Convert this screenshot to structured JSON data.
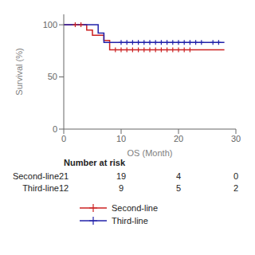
{
  "chart_data": {
    "type": "line",
    "xlabel": "OS (Month)",
    "ylabel": "Survival (%)",
    "xlim": [
      0,
      30
    ],
    "ylim": [
      0,
      110
    ],
    "xticks": [
      0,
      10,
      20,
      30
    ],
    "yticks": [
      0,
      50,
      100
    ],
    "legend": "bottom",
    "series": [
      {
        "name": "Second-line",
        "color": "#CC2222",
        "line_style": "step",
        "marker": "+",
        "x": [
          0,
          4,
          4,
          5,
          5,
          7,
          7,
          8,
          8,
          11,
          11,
          28
        ],
        "values": [
          100,
          100,
          95,
          95,
          90,
          90,
          85,
          85,
          76,
          76,
          76,
          76
        ],
        "censors_x": [
          2,
          3,
          9,
          10,
          11,
          12,
          13,
          14,
          15,
          16,
          17,
          18,
          19,
          20,
          21,
          22
        ],
        "censors_values": [
          100,
          100,
          76,
          76,
          76,
          76,
          76,
          76,
          76,
          76,
          76,
          76,
          76,
          76,
          76,
          76
        ]
      },
      {
        "name": "Third-line",
        "color": "#2222AA",
        "line_style": "step",
        "marker": "+",
        "x": [
          0,
          6,
          6,
          7,
          7,
          8,
          8,
          25,
          25,
          28
        ],
        "values": [
          100,
          100,
          92,
          92,
          83,
          83,
          83,
          83,
          83,
          83
        ],
        "censors_x": [
          10,
          11,
          12,
          13,
          14,
          15,
          16,
          17,
          18,
          19,
          20,
          21,
          22,
          23,
          24,
          26,
          27
        ],
        "censors_values": [
          83,
          83,
          83,
          83,
          83,
          83,
          83,
          83,
          83,
          83,
          83,
          83,
          83,
          83,
          83,
          83,
          83
        ]
      }
    ],
    "risk_table": {
      "header": "Number at risk",
      "x": [
        0,
        10,
        20,
        30
      ],
      "rows": [
        {
          "label": "Second-line",
          "values": [
            21,
            19,
            4,
            0
          ]
        },
        {
          "label": "Third-line",
          "values": [
            12,
            9,
            5,
            2
          ]
        }
      ]
    }
  }
}
